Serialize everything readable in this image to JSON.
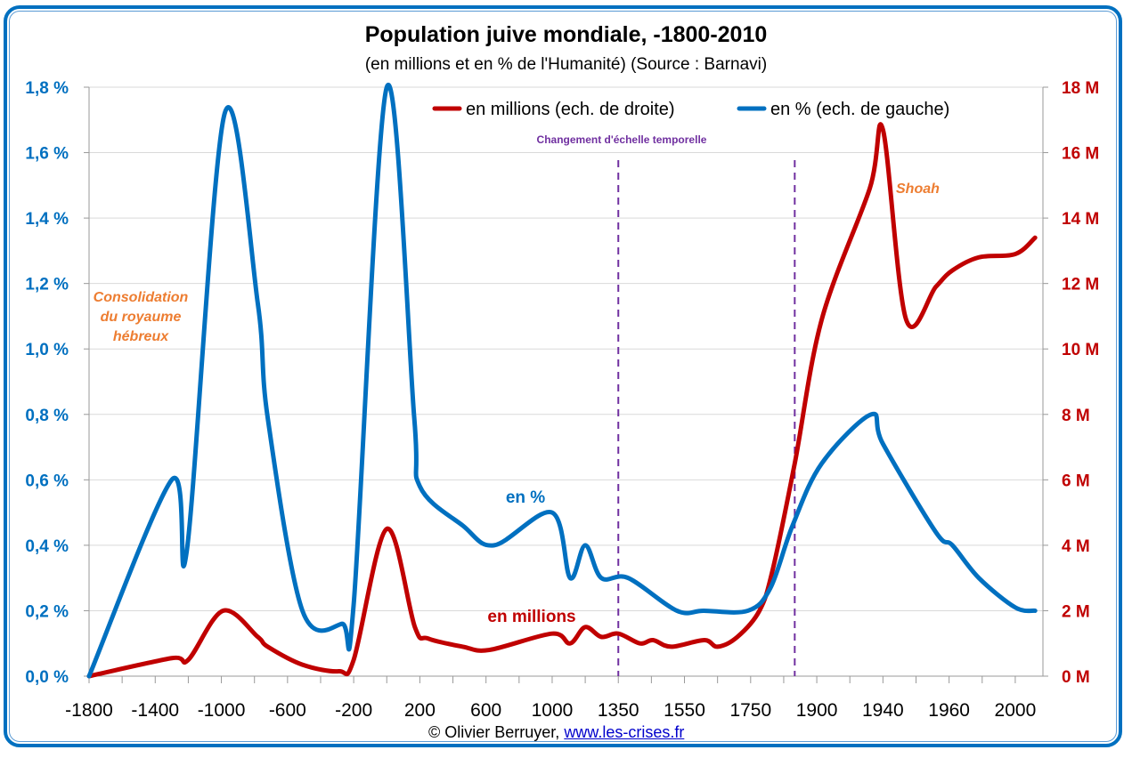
{
  "chart_data": {
    "type": "line",
    "title": "Population juive mondiale, -1800-2010",
    "subtitle": "(en millions et en % de l'Humanité) (Source : Barnavi)",
    "x_tick_labels": [
      "-1800",
      "-1400",
      "-1000",
      "-600",
      "-200",
      "200",
      "600",
      "1000",
      "1350",
      "1550",
      "1750",
      "1900",
      "1940",
      "1960",
      "2000"
    ],
    "y_left": {
      "range": [
        0,
        1.8
      ],
      "ticks": [
        "0,0 %",
        "0,2 %",
        "0,4 %",
        "0,6 %",
        "0,8 %",
        "1,0 %",
        "1,2 %",
        "1,4 %",
        "1,6 %",
        "1,8 %"
      ],
      "color": "#0070C0"
    },
    "y_right": {
      "range": [
        0,
        18
      ],
      "ticks": [
        "0 M",
        "2 M",
        "4 M",
        "6 M",
        "8 M",
        "10 M",
        "12 M",
        "14 M",
        "16 M",
        "18 M"
      ],
      "color": "#C00000"
    },
    "grid": "horizontal",
    "legend_position": "top-right",
    "series": [
      {
        "name": "en millions  (ech. de droite)",
        "axis": "right",
        "color": "#C00000",
        "points": [
          [
            -1800,
            0
          ],
          [
            -1300,
            0.55
          ],
          [
            -1200,
            0.5
          ],
          [
            -990,
            2.0
          ],
          [
            -780,
            1.2
          ],
          [
            -720,
            0.9
          ],
          [
            -510,
            0.35
          ],
          [
            -290,
            0.15
          ],
          [
            -200,
            0.5
          ],
          [
            0,
            4.5
          ],
          [
            170,
            1.5
          ],
          [
            250,
            1.15
          ],
          [
            460,
            0.9
          ],
          [
            620,
            0.8
          ],
          [
            1000,
            1.3
          ],
          [
            1095,
            1.0
          ],
          [
            1175,
            1.5
          ],
          [
            1260,
            1.2
          ],
          [
            1350,
            1.3
          ],
          [
            1415,
            1.0
          ],
          [
            1455,
            1.1
          ],
          [
            1510,
            0.9
          ],
          [
            1610,
            1.1
          ],
          [
            1650,
            0.9
          ],
          [
            1710,
            1.2
          ],
          [
            1770,
            2.0
          ],
          [
            1800,
            3.25
          ],
          [
            1850,
            6.5
          ],
          [
            1903,
            10.9
          ],
          [
            1932,
            14.9
          ],
          [
            1940,
            16.7
          ],
          [
            1947,
            10.9
          ],
          [
            1956,
            11.9
          ],
          [
            1962,
            12.4
          ],
          [
            1978,
            12.8
          ],
          [
            2000,
            12.9
          ],
          [
            2010,
            13.4
          ]
        ]
      },
      {
        "name": "en % (ech. de gauche)",
        "axis": "left",
        "color": "#0070C0",
        "points": [
          [
            -1800,
            0
          ],
          [
            -1300,
            0.6
          ],
          [
            -1210,
            0.38
          ],
          [
            -980,
            1.72
          ],
          [
            -780,
            1.14
          ],
          [
            -720,
            0.79
          ],
          [
            -510,
            0.2
          ],
          [
            -270,
            0.16
          ],
          [
            -200,
            0.22
          ],
          [
            0,
            1.8
          ],
          [
            166,
            0.79
          ],
          [
            200,
            0.58
          ],
          [
            460,
            0.46
          ],
          [
            650,
            0.4
          ],
          [
            1000,
            0.5
          ],
          [
            1095,
            0.3
          ],
          [
            1175,
            0.4
          ],
          [
            1260,
            0.3
          ],
          [
            1380,
            0.3
          ],
          [
            1527,
            0.2
          ],
          [
            1608,
            0.2
          ],
          [
            1742,
            0.2
          ],
          [
            1795,
            0.27
          ],
          [
            1845,
            0.46
          ],
          [
            1903,
            0.65
          ],
          [
            1933,
            0.8
          ],
          [
            1940,
            0.71
          ],
          [
            1956,
            0.44
          ],
          [
            1962,
            0.4
          ],
          [
            1978,
            0.3
          ],
          [
            2000,
            0.21
          ],
          [
            2010,
            0.2
          ]
        ]
      }
    ],
    "annotations": [
      {
        "text": "Consolidation\ndu royaume\nhébreux",
        "color": "#ED7D31"
      },
      {
        "text": "Shoah",
        "color": "#ED7D31"
      },
      {
        "text": "en %",
        "color": "#0070C0"
      },
      {
        "text": "en millions",
        "color": "#C00000"
      },
      {
        "text": "Changement d'échelle temporelle",
        "color": "#7030A0"
      }
    ],
    "vertical_markers": [
      1350,
      1850
    ]
  },
  "credit": {
    "author": "© Olivier Berruyer,",
    "link": "www.les-crises.fr"
  },
  "frame_color": "#0070C0"
}
